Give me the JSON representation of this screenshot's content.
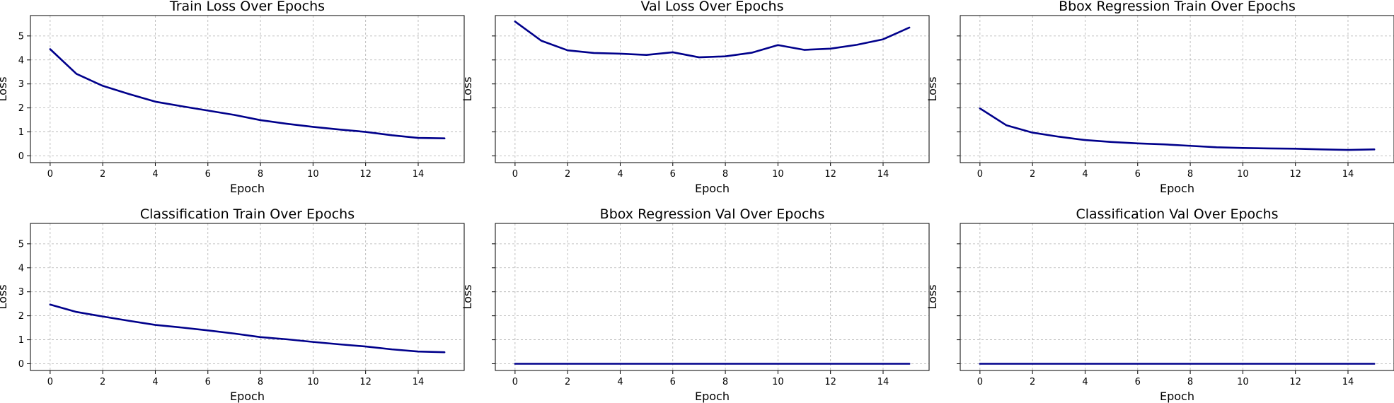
{
  "style": {
    "line_color": "#00008b",
    "grid": true,
    "grid_style": "dashed"
  },
  "chart_data": [
    {
      "type": "line",
      "title": "Train Loss Over Epochs",
      "xlabel": "Epoch",
      "ylabel": "Loss",
      "xlim": [
        -0.75,
        15.75
      ],
      "ylim": [
        -0.28,
        5.85
      ],
      "xticks": [
        0,
        2,
        4,
        6,
        8,
        10,
        12,
        14
      ],
      "yticks": [
        0,
        1,
        2,
        3,
        4,
        5
      ],
      "x": [
        0,
        1,
        2,
        3,
        4,
        5,
        6,
        7,
        8,
        9,
        10,
        11,
        12,
        13,
        14,
        15
      ],
      "series": [
        {
          "values": [
            4.45,
            3.42,
            2.92,
            2.58,
            2.26,
            2.07,
            1.89,
            1.71,
            1.49,
            1.34,
            1.21,
            1.1,
            1.0,
            0.86,
            0.75,
            0.73
          ]
        }
      ]
    },
    {
      "type": "line",
      "title": "Val Loss Over Epochs",
      "xlabel": "Epoch",
      "ylabel": "Loss",
      "xlim": [
        -0.75,
        15.75
      ],
      "ylim": [
        -0.28,
        5.85
      ],
      "xticks": [
        0,
        2,
        4,
        6,
        8,
        10,
        12,
        14
      ],
      "yticks": [
        0,
        1,
        2,
        3,
        4,
        5
      ],
      "ytick_labels_visible": false,
      "x": [
        0,
        1,
        2,
        3,
        4,
        5,
        6,
        7,
        8,
        9,
        10,
        11,
        12,
        13,
        14,
        15
      ],
      "series": [
        {
          "values": [
            5.6,
            4.8,
            4.4,
            4.29,
            4.26,
            4.21,
            4.32,
            4.11,
            4.15,
            4.3,
            4.62,
            4.42,
            4.47,
            4.63,
            4.86,
            5.35
          ]
        }
      ]
    },
    {
      "type": "line",
      "title": "Bbox Regression Train Over Epochs",
      "xlabel": "Epoch",
      "ylabel": "Loss",
      "xlim": [
        -0.75,
        15.75
      ],
      "ylim": [
        -0.28,
        5.85
      ],
      "xticks": [
        0,
        2,
        4,
        6,
        8,
        10,
        12,
        14
      ],
      "yticks": [
        0,
        1,
        2,
        3,
        4,
        5
      ],
      "ytick_labels_visible": false,
      "x": [
        0,
        1,
        2,
        3,
        4,
        5,
        6,
        7,
        8,
        9,
        10,
        11,
        12,
        13,
        14,
        15
      ],
      "series": [
        {
          "values": [
            1.98,
            1.28,
            0.97,
            0.8,
            0.66,
            0.58,
            0.52,
            0.48,
            0.42,
            0.36,
            0.33,
            0.31,
            0.3,
            0.27,
            0.25,
            0.27
          ]
        }
      ]
    },
    {
      "type": "line",
      "title": "Classification Train Over Epochs",
      "xlabel": "Epoch",
      "ylabel": "Loss",
      "xlim": [
        -0.75,
        15.75
      ],
      "ylim": [
        -0.28,
        5.85
      ],
      "xticks": [
        0,
        2,
        4,
        6,
        8,
        10,
        12,
        14
      ],
      "yticks": [
        0,
        1,
        2,
        3,
        4,
        5
      ],
      "x": [
        0,
        1,
        2,
        3,
        4,
        5,
        6,
        7,
        8,
        9,
        10,
        11,
        12,
        13,
        14,
        15
      ],
      "series": [
        {
          "values": [
            2.47,
            2.16,
            1.97,
            1.79,
            1.62,
            1.51,
            1.39,
            1.26,
            1.11,
            1.02,
            0.91,
            0.81,
            0.72,
            0.6,
            0.51,
            0.48
          ]
        }
      ]
    },
    {
      "type": "line",
      "title": "Bbox Regression Val Over Epochs",
      "xlabel": "Epoch",
      "ylabel": "Loss",
      "xlim": [
        -0.75,
        15.75
      ],
      "ylim": [
        -0.28,
        5.85
      ],
      "xticks": [
        0,
        2,
        4,
        6,
        8,
        10,
        12,
        14
      ],
      "yticks": [
        0,
        1,
        2,
        3,
        4,
        5
      ],
      "ytick_labels_visible": false,
      "x": [
        0,
        1,
        2,
        3,
        4,
        5,
        6,
        7,
        8,
        9,
        10,
        11,
        12,
        13,
        14,
        15
      ],
      "series": [
        {
          "values": [
            0,
            0,
            0,
            0,
            0,
            0,
            0,
            0,
            0,
            0,
            0,
            0,
            0,
            0,
            0,
            0
          ]
        }
      ]
    },
    {
      "type": "line",
      "title": "Classification Val Over Epochs",
      "xlabel": "Epoch",
      "ylabel": "Loss",
      "xlim": [
        -0.75,
        15.75
      ],
      "ylim": [
        -0.28,
        5.85
      ],
      "xticks": [
        0,
        2,
        4,
        6,
        8,
        10,
        12,
        14
      ],
      "yticks": [
        0,
        1,
        2,
        3,
        4,
        5
      ],
      "ytick_labels_visible": false,
      "x": [
        0,
        1,
        2,
        3,
        4,
        5,
        6,
        7,
        8,
        9,
        10,
        11,
        12,
        13,
        14,
        15
      ],
      "series": [
        {
          "values": [
            0,
            0,
            0,
            0,
            0,
            0,
            0,
            0,
            0,
            0,
            0,
            0,
            0,
            0,
            0,
            0
          ]
        }
      ]
    }
  ]
}
